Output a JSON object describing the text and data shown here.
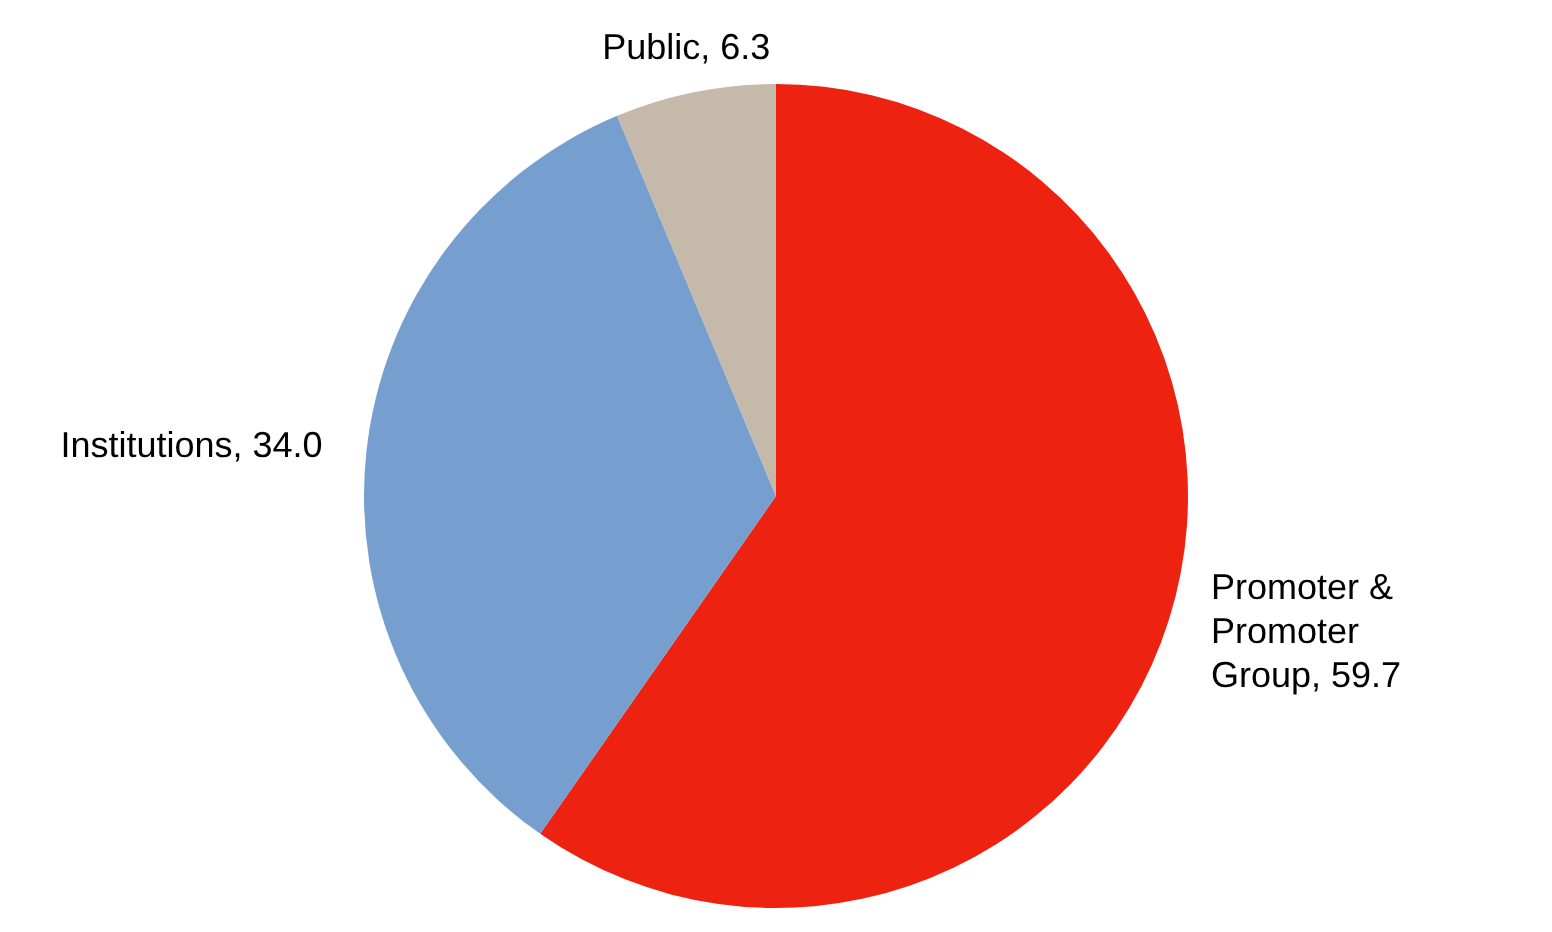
{
  "chart_data": {
    "type": "pie",
    "categories": [
      "Promoter & Promoter Group",
      "Institutions",
      "Public"
    ],
    "values": [
      59.7,
      34.0,
      6.3
    ],
    "colors": [
      "#ee2211",
      "#769fcf",
      "#c5b9a9"
    ],
    "value_labels": [
      "59.7",
      "34.0",
      "6.3"
    ],
    "legend": false
  }
}
